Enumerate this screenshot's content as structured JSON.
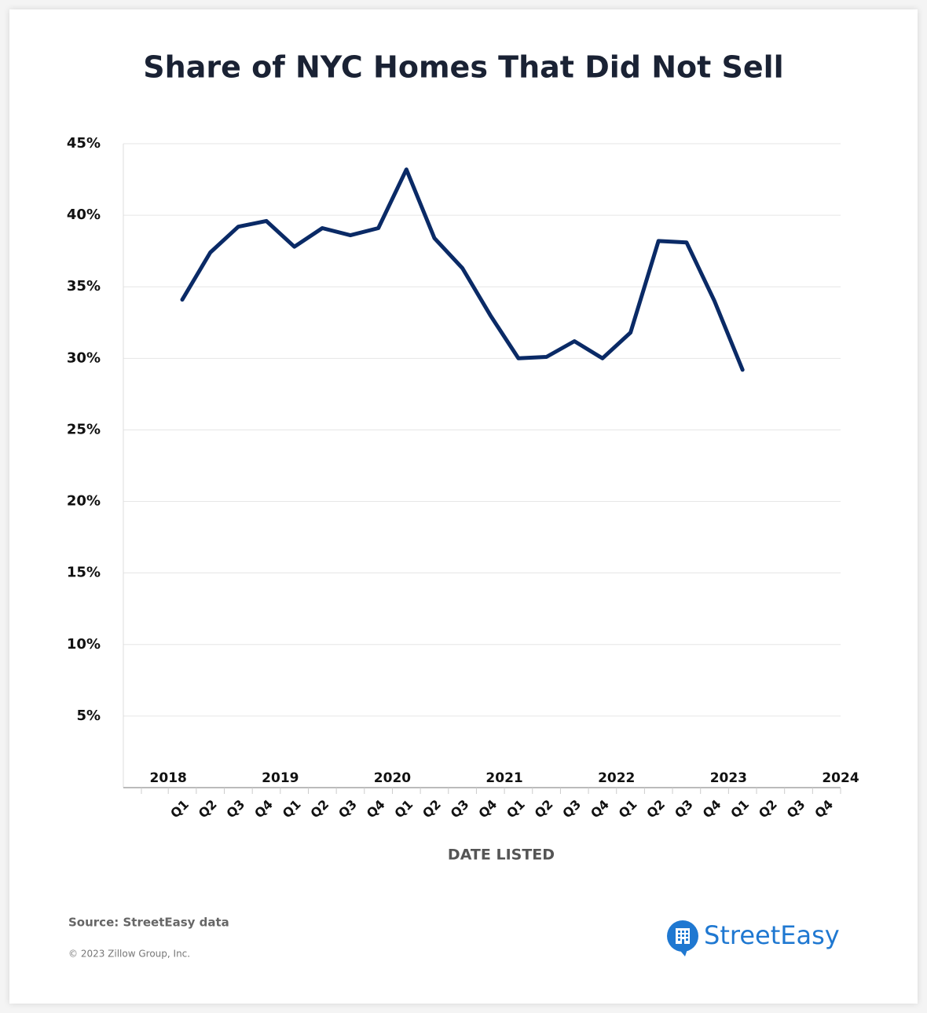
{
  "chart_data": {
    "type": "line",
    "title": "Share of NYC Homes That Did Not Sell",
    "x_label": "DATE LISTED",
    "categories": [
      "Q1",
      "Q2",
      "Q3",
      "Q4",
      "Q1",
      "Q2",
      "Q3",
      "Q4",
      "Q1",
      "Q2",
      "Q3",
      "Q4",
      "Q1",
      "Q2",
      "Q3",
      "Q4",
      "Q1",
      "Q2",
      "Q3",
      "Q4",
      "Q1",
      "Q2",
      "Q3",
      "Q4"
    ],
    "x_groups": [
      "2018",
      "2019",
      "2020",
      "2021",
      "2022",
      "2023",
      "2024"
    ],
    "series": [
      {
        "name": "Share of NYC Homes That Did Not Sell",
        "color": "#0a2a66",
        "values": [
          34.1,
          37.4,
          39.2,
          39.6,
          37.8,
          39.1,
          38.6,
          39.1,
          43.2,
          38.4,
          36.3,
          33.0,
          30.0,
          30.1,
          31.2,
          30.0,
          31.8,
          38.2,
          38.1,
          34.0,
          29.2,
          null,
          null,
          null
        ]
      }
    ],
    "ylim": [
      0,
      45
    ],
    "yticks": [
      {
        "value": 5,
        "label": "5%"
      },
      {
        "value": 10,
        "label": "10%"
      },
      {
        "value": 15,
        "label": "15%"
      },
      {
        "value": 20,
        "label": "20%"
      },
      {
        "value": 25,
        "label": "25%"
      },
      {
        "value": 30,
        "label": "30%"
      },
      {
        "value": 35,
        "label": "35%"
      },
      {
        "value": 40,
        "label": "40%"
      },
      {
        "value": 45,
        "label": "45%"
      }
    ],
    "grid": true
  },
  "footer": {
    "source": "Source: StreetEasy data",
    "copyright": "© 2023 Zillow Group, Inc.",
    "logo": "StreetEasy"
  }
}
